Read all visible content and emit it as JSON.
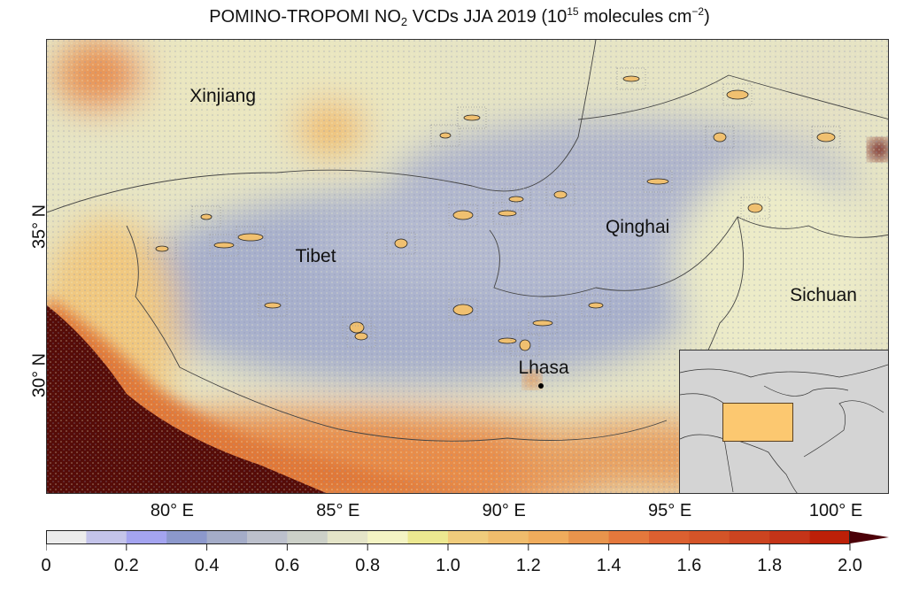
{
  "title": {
    "main": "POMINO-TROPOMI NO",
    "sub": "2",
    "mid": " VCDs JJA 2019 (10",
    "sup1": "15",
    "unit": " molecules cm",
    "sup2": "−2",
    "end": ")"
  },
  "map": {
    "lon_range": [
      76.2,
      101.6
    ],
    "lat_range": [
      26.0,
      41.3
    ],
    "lon_ticks": [
      {
        "value": 80,
        "label": "80° E"
      },
      {
        "value": 85,
        "label": "85° E"
      },
      {
        "value": 90,
        "label": "90° E"
      },
      {
        "value": 95,
        "label": "95° E"
      },
      {
        "value": 100,
        "label": "100° E"
      }
    ],
    "lat_ticks": [
      {
        "value": 35,
        "label": "35° N"
      },
      {
        "value": 30,
        "label": "30° N"
      }
    ],
    "regions": [
      {
        "name": "Xinjiang",
        "lon": 81.5,
        "lat": 39.4
      },
      {
        "name": "Tibet",
        "lon": 84.3,
        "lat": 34.0
      },
      {
        "name": "Qinghai",
        "lon": 94.0,
        "lat": 35.0
      },
      {
        "name": "Sichuan",
        "lon": 99.6,
        "lat": 32.7
      }
    ],
    "city": {
      "name": "Lhasa",
      "lon": 91.1,
      "lat": 29.65
    },
    "inset": {
      "highlight_color": "#fcc870",
      "land_color": "#d4d4d4"
    }
  },
  "colorbar": {
    "min": 0,
    "max": 2.0,
    "step": 0.1,
    "extend": "max",
    "extend_color": "#4c0008",
    "colors": [
      "#ececec",
      "#c4c4ea",
      "#a4a4f0",
      "#8c98cc",
      "#a4acc8",
      "#bcc0cc",
      "#ccd0c8",
      "#e4e4c8",
      "#f4f4c4",
      "#ece890",
      "#f0cc7c",
      "#f0bc6c",
      "#f0ac5c",
      "#e8944c",
      "#e4783c",
      "#dc6030",
      "#d45428",
      "#cc4420",
      "#c43418",
      "#bc2008"
    ],
    "tick_labels": [
      "0",
      "0.2",
      "0.4",
      "0.6",
      "0.8",
      "1.0",
      "1.2",
      "1.4",
      "1.6",
      "1.8",
      "2.0"
    ]
  }
}
